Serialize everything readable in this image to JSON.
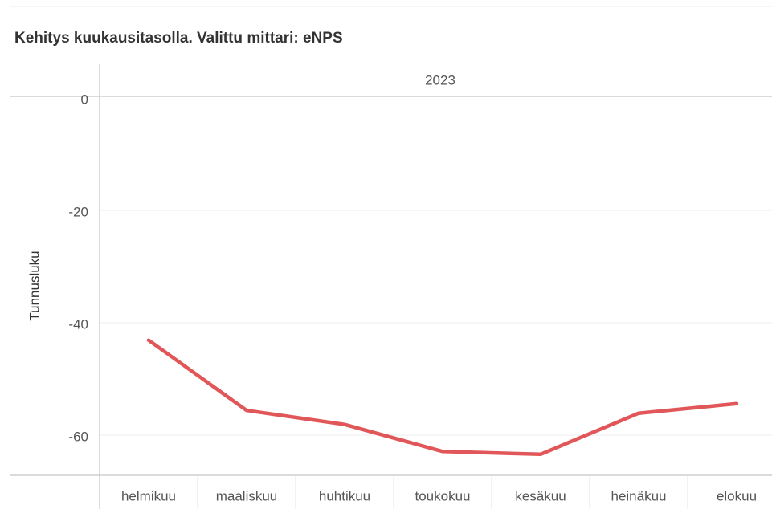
{
  "chart_data": {
    "type": "line",
    "title": "Kehitys kuukausitasolla. Valittu mittari: eNPS",
    "header": "2023",
    "y_label": "Tunnusluku",
    "categories": [
      "helmikuu",
      "maaliskuu",
      "huhtikuu",
      "toukokuu",
      "kesäkuu",
      "heinäkuu",
      "elokuu"
    ],
    "series": [
      {
        "name": "eNPS",
        "color": "#e15759",
        "values": [
          -43.1,
          -55.6,
          -58.1,
          -62.9,
          -63.4,
          -56.1,
          -54.4
        ]
      }
    ],
    "ylim": [
      -67,
      0
    ],
    "yticks": [
      0,
      -20,
      -40,
      -60
    ],
    "grid": true
  }
}
